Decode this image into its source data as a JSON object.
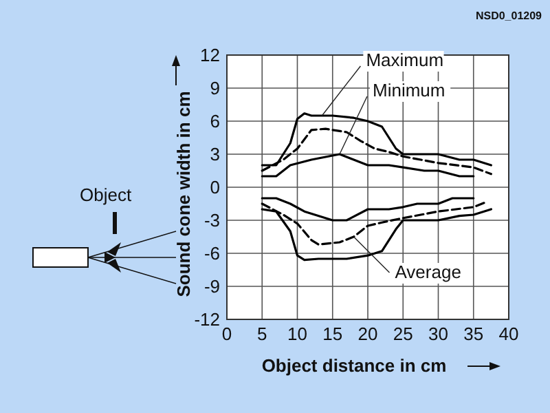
{
  "chart_data": {
    "type": "line",
    "xlabel": "Object distance in cm",
    "ylabel": "Sound cone width in cm",
    "xlim": [
      0,
      40
    ],
    "ylim": [
      -12,
      12
    ],
    "xticks": [
      0,
      5,
      10,
      15,
      20,
      25,
      30,
      35,
      40
    ],
    "yticks": [
      -12,
      -9,
      -6,
      -3,
      0,
      3,
      6,
      9,
      12
    ],
    "grid": true,
    "marker": "none",
    "annotations": [
      {
        "text": "Maximum",
        "x": 13.5,
        "y": 6.5
      },
      {
        "text": "Minimum",
        "x": 16,
        "y": 3
      },
      {
        "text": "Average",
        "x": 18,
        "y": -4.5
      },
      "Object",
      "NSD0_01209"
    ],
    "series": [
      {
        "color": "#000000",
        "line_style": "solid",
        "x": [
          5,
          7,
          9,
          10,
          11,
          12,
          15,
          18,
          20,
          22,
          24,
          25,
          28,
          30,
          33,
          35,
          37.5
        ],
        "values": [
          2,
          2,
          4,
          6.2,
          6.7,
          6.5,
          6.5,
          6.3,
          6,
          5.5,
          3.5,
          3,
          3,
          3,
          2.5,
          2.5,
          2
        ]
      },
      {
        "color": "#000000",
        "line_style": "solid",
        "x": [
          5,
          7,
          9,
          12,
          16,
          18,
          20,
          23,
          25,
          28,
          30,
          33,
          35
        ],
        "values": [
          1,
          1,
          2,
          2.5,
          3,
          2.5,
          2,
          2,
          1.8,
          1.5,
          1.5,
          1,
          1
        ]
      },
      {
        "color": "#000000",
        "line_style": "dashed",
        "x": [
          5,
          8,
          10,
          12,
          14,
          17,
          19,
          21,
          23,
          25,
          30,
          35,
          37.5
        ],
        "values": [
          1.5,
          2.5,
          3.5,
          5.2,
          5.3,
          5,
          4.2,
          3.5,
          3.2,
          2.8,
          2.2,
          1.8,
          1.2
        ]
      },
      {
        "color": "#000000",
        "line_style": "solid",
        "x": [
          5,
          7,
          9,
          10,
          11,
          13,
          17,
          20,
          22,
          24,
          25,
          27,
          30,
          33,
          35,
          37.5
        ],
        "values": [
          -2,
          -2.2,
          -4,
          -6.2,
          -6.6,
          -6.5,
          -6.5,
          -6.2,
          -5.8,
          -3.8,
          -3,
          -3,
          -3,
          -2.6,
          -2.5,
          -2
        ]
      },
      {
        "color": "#000000",
        "line_style": "solid",
        "x": [
          5,
          7,
          9,
          11,
          15,
          17,
          20,
          23,
          25,
          27,
          30,
          32,
          35
        ],
        "values": [
          -1,
          -1,
          -1.5,
          -2.2,
          -3,
          -3,
          -2,
          -2,
          -1.8,
          -1.5,
          -1.5,
          -1,
          -1
        ]
      },
      {
        "color": "#000000",
        "line_style": "dashed",
        "x": [
          5,
          8,
          10,
          12,
          13,
          16,
          18,
          20,
          22,
          25,
          30,
          35,
          37
        ],
        "values": [
          -1.5,
          -2.5,
          -3.3,
          -4.8,
          -5.2,
          -5,
          -4.5,
          -3.5,
          -3.2,
          -2.8,
          -2.2,
          -1.8,
          -1.3
        ]
      }
    ]
  }
}
